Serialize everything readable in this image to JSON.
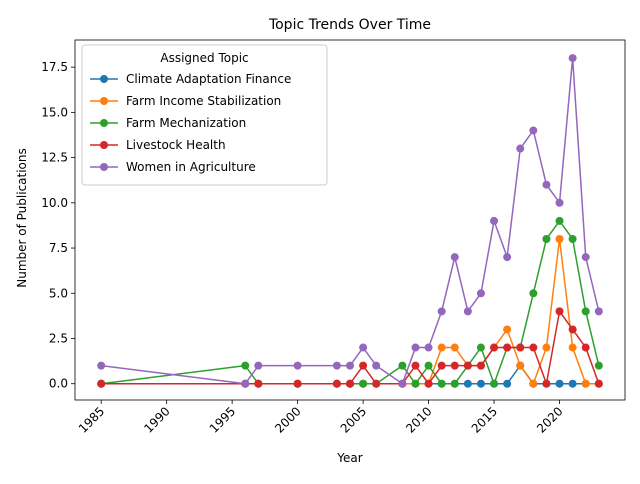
{
  "chart_data": {
    "type": "line",
    "title": "Topic Trends Over Time",
    "xlabel": "Year",
    "ylabel": "Number of Publications",
    "xlim": [
      1983,
      2025
    ],
    "ylim": [
      -0.9,
      19.0
    ],
    "x_ticks": [
      1985,
      1990,
      1995,
      2000,
      2005,
      2010,
      2015,
      2020
    ],
    "y_ticks": [
      0.0,
      2.5,
      5.0,
      7.5,
      10.0,
      12.5,
      15.0,
      17.5
    ],
    "y_tick_labels": [
      "0.0",
      "2.5",
      "5.0",
      "7.5",
      "10.0",
      "12.5",
      "15.0",
      "17.5"
    ],
    "x_tick_rotation": 45,
    "grid": false,
    "legend": {
      "title": "Assigned Topic",
      "placement": "top-left"
    },
    "series": [
      {
        "name": "Climate Adaptation Finance",
        "color": "#1f77b4",
        "points": [
          [
            1985,
            0
          ],
          [
            1996,
            0
          ],
          [
            1997,
            0
          ],
          [
            2000,
            0
          ],
          [
            2003,
            0
          ],
          [
            2004,
            0
          ],
          [
            2005,
            0
          ],
          [
            2006,
            0
          ],
          [
            2008,
            0
          ],
          [
            2009,
            0
          ],
          [
            2010,
            0
          ],
          [
            2011,
            0
          ],
          [
            2012,
            0
          ],
          [
            2013,
            0
          ],
          [
            2014,
            0
          ],
          [
            2015,
            0
          ],
          [
            2016,
            0
          ],
          [
            2017,
            1
          ],
          [
            2018,
            0
          ],
          [
            2019,
            0
          ],
          [
            2020,
            0
          ],
          [
            2021,
            0
          ],
          [
            2022,
            0
          ],
          [
            2023,
            0
          ]
        ]
      },
      {
        "name": "Farm Income Stabilization",
        "color": "#ff7f0e",
        "points": [
          [
            1985,
            0
          ],
          [
            1996,
            0
          ],
          [
            1997,
            0
          ],
          [
            2000,
            0
          ],
          [
            2003,
            0
          ],
          [
            2004,
            0
          ],
          [
            2005,
            0
          ],
          [
            2006,
            0
          ],
          [
            2008,
            0
          ],
          [
            2009,
            0
          ],
          [
            2010,
            0
          ],
          [
            2011,
            2
          ],
          [
            2012,
            2
          ],
          [
            2013,
            1
          ],
          [
            2014,
            1
          ],
          [
            2015,
            2
          ],
          [
            2016,
            3
          ],
          [
            2017,
            1
          ],
          [
            2018,
            0
          ],
          [
            2019,
            2
          ],
          [
            2020,
            8
          ],
          [
            2021,
            2
          ],
          [
            2022,
            0
          ],
          [
            2023,
            0
          ]
        ]
      },
      {
        "name": "Farm Mechanization",
        "color": "#2ca02c",
        "points": [
          [
            1985,
            0
          ],
          [
            1996,
            1
          ],
          [
            1997,
            0
          ],
          [
            2000,
            0
          ],
          [
            2003,
            0
          ],
          [
            2004,
            0
          ],
          [
            2005,
            0
          ],
          [
            2006,
            0
          ],
          [
            2008,
            1
          ],
          [
            2009,
            0
          ],
          [
            2010,
            1
          ],
          [
            2011,
            0
          ],
          [
            2012,
            0
          ],
          [
            2013,
            1
          ],
          [
            2014,
            2
          ],
          [
            2015,
            0
          ],
          [
            2016,
            2
          ],
          [
            2017,
            2
          ],
          [
            2018,
            5
          ],
          [
            2019,
            8
          ],
          [
            2020,
            9
          ],
          [
            2021,
            8
          ],
          [
            2022,
            4
          ],
          [
            2023,
            1
          ]
        ]
      },
      {
        "name": "Livestock Health",
        "color": "#d62728",
        "points": [
          [
            1985,
            0
          ],
          [
            1996,
            0
          ],
          [
            1997,
            0
          ],
          [
            2000,
            0
          ],
          [
            2003,
            0
          ],
          [
            2004,
            0
          ],
          [
            2005,
            1
          ],
          [
            2006,
            0
          ],
          [
            2008,
            0
          ],
          [
            2009,
            1
          ],
          [
            2010,
            0
          ],
          [
            2011,
            1
          ],
          [
            2012,
            1
          ],
          [
            2013,
            1
          ],
          [
            2014,
            1
          ],
          [
            2015,
            2
          ],
          [
            2016,
            2
          ],
          [
            2017,
            2
          ],
          [
            2018,
            2
          ],
          [
            2019,
            0
          ],
          [
            2020,
            4
          ],
          [
            2021,
            3
          ],
          [
            2022,
            2
          ],
          [
            2023,
            0
          ]
        ]
      },
      {
        "name": "Women in Agriculture",
        "color": "#9467bd",
        "points": [
          [
            1985,
            1
          ],
          [
            1996,
            0
          ],
          [
            1997,
            1
          ],
          [
            2000,
            1
          ],
          [
            2003,
            1
          ],
          [
            2004,
            1
          ],
          [
            2005,
            2
          ],
          [
            2006,
            1
          ],
          [
            2008,
            0
          ],
          [
            2009,
            2
          ],
          [
            2010,
            2
          ],
          [
            2011,
            4
          ],
          [
            2012,
            7
          ],
          [
            2013,
            4
          ],
          [
            2014,
            5
          ],
          [
            2015,
            9
          ],
          [
            2016,
            7
          ],
          [
            2017,
            13
          ],
          [
            2018,
            14
          ],
          [
            2019,
            11
          ],
          [
            2020,
            10
          ],
          [
            2021,
            18
          ],
          [
            2022,
            7
          ],
          [
            2023,
            4
          ]
        ]
      }
    ]
  }
}
